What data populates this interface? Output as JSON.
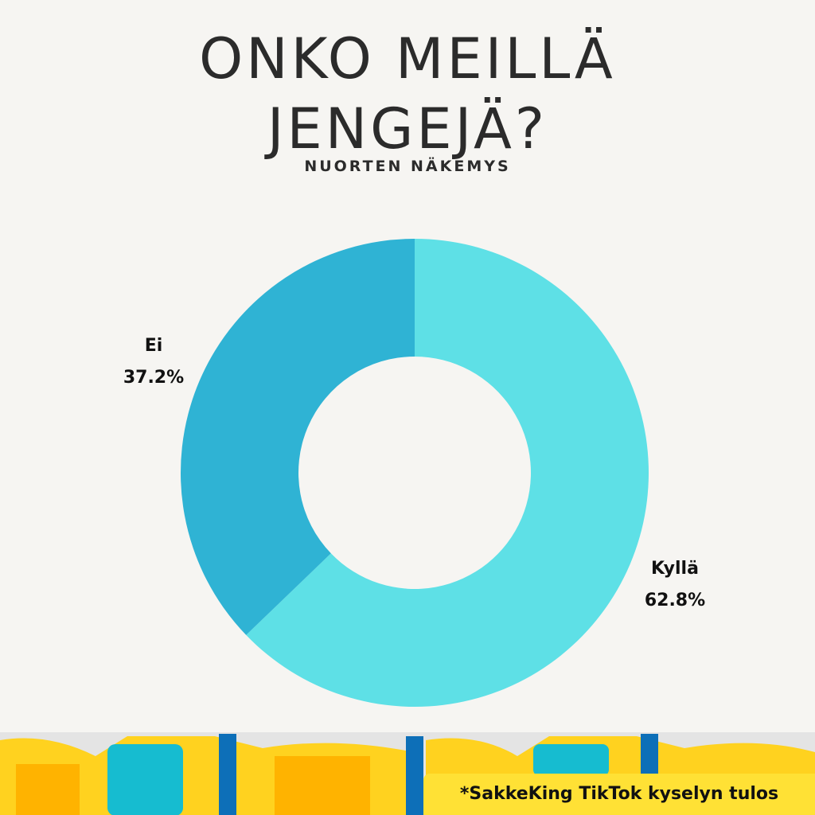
{
  "chart_data": {
    "type": "donut",
    "title": "ONKO MEILLÄ JENGEJÄ?",
    "subtitle": "NUORTEN NÄKEMYS",
    "categories": [
      "Kyllä",
      "Ei"
    ],
    "values": [
      62.8,
      37.2
    ],
    "value_labels": [
      "62.8%",
      "37.2%"
    ],
    "colors": [
      "#5ee0e6",
      "#2fb3d4"
    ],
    "note": "*SakkeKing TikTok kyselyn tulos"
  }
}
